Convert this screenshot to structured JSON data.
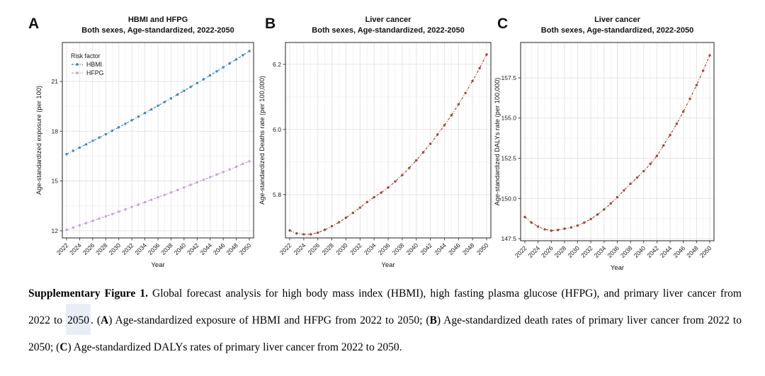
{
  "figure": {
    "panel_letters": [
      "A",
      "B",
      "C"
    ]
  },
  "colors": {
    "hbmi_blue": "#3d87be",
    "hfpg_purple": "#c2a5cf",
    "liver_red": "#a5443c",
    "caption_highlight": "#e9eef6",
    "grid_major": "#e2e2e2",
    "grid_minor": "#efefef",
    "panel_border": "#454545"
  },
  "chart_data": [
    {
      "type": "line",
      "panel": "A",
      "title": "HBMI and HFPG",
      "subtitle": "Both sexes, Age-standardized, 2022-2050",
      "xlabel": "Year",
      "ylabel": "Age-standardized exposure (per 100)",
      "x": [
        2022,
        2023,
        2024,
        2025,
        2026,
        2027,
        2028,
        2029,
        2030,
        2031,
        2032,
        2033,
        2034,
        2035,
        2036,
        2037,
        2038,
        2039,
        2040,
        2041,
        2042,
        2043,
        2044,
        2045,
        2046,
        2047,
        2048,
        2049,
        2050
      ],
      "xticks": [
        2022,
        2024,
        2026,
        2028,
        2030,
        2032,
        2034,
        2036,
        2038,
        2040,
        2042,
        2044,
        2046,
        2048,
        2050
      ],
      "yticks": [
        12,
        15,
        18,
        21
      ],
      "ylim": [
        11.57,
        23.35
      ],
      "grid": true,
      "legend": {
        "title": "Risk factor",
        "position": "top-left",
        "items": [
          {
            "label": "HBMI",
            "color": "#3d87be"
          },
          {
            "label": "HFPG",
            "color": "#c2a5cf"
          }
        ]
      },
      "series": [
        {
          "name": "HBMI",
          "color": "#3d87be",
          "values": [
            16.62,
            16.82,
            17.01,
            17.21,
            17.42,
            17.62,
            17.82,
            18.03,
            18.24,
            18.45,
            18.67,
            18.88,
            19.1,
            19.32,
            19.54,
            19.76,
            19.98,
            20.21,
            20.44,
            20.67,
            20.9,
            21.13,
            21.37,
            21.61,
            21.85,
            22.09,
            22.33,
            22.58,
            22.83
          ]
        },
        {
          "name": "HFPG",
          "color": "#c2a5cf",
          "values": [
            12.06,
            12.19,
            12.33,
            12.46,
            12.6,
            12.73,
            12.87,
            13.01,
            13.15,
            13.29,
            13.44,
            13.58,
            13.72,
            13.87,
            14.02,
            14.16,
            14.31,
            14.46,
            14.61,
            14.77,
            14.92,
            15.07,
            15.23,
            15.39,
            15.54,
            15.7,
            15.86,
            16.03,
            16.19
          ]
        }
      ]
    },
    {
      "type": "line",
      "panel": "B",
      "title": "Liver cancer",
      "subtitle": "Both sexes, Age-standardized, 2022-2050",
      "xlabel": "Year",
      "ylabel": "Age-standardized Deaths rate (per 100,000)",
      "x": [
        2022,
        2023,
        2024,
        2025,
        2026,
        2027,
        2028,
        2029,
        2030,
        2031,
        2032,
        2033,
        2034,
        2035,
        2036,
        2037,
        2038,
        2039,
        2040,
        2041,
        2042,
        2043,
        2044,
        2045,
        2046,
        2047,
        2048,
        2049,
        2050
      ],
      "xticks": [
        2022,
        2024,
        2026,
        2028,
        2030,
        2032,
        2034,
        2036,
        2038,
        2040,
        2042,
        2044,
        2046,
        2048,
        2050
      ],
      "yticks": [
        5.8,
        6.0,
        6.2
      ],
      "ytick_labels": [
        "5.8",
        "6.0",
        "6.2"
      ],
      "ylim": [
        5.667,
        6.267
      ],
      "grid": true,
      "series": [
        {
          "name": "Liver cancer deaths",
          "color": "#a5443c",
          "values": [
            5.69,
            5.681,
            5.678,
            5.678,
            5.683,
            5.692,
            5.703,
            5.715,
            5.729,
            5.744,
            5.76,
            5.777,
            5.792,
            5.806,
            5.822,
            5.84,
            5.86,
            5.882,
            5.905,
            5.93,
            5.956,
            5.984,
            6.013,
            6.044,
            6.077,
            6.112,
            6.149,
            6.188,
            6.23
          ]
        }
      ]
    },
    {
      "type": "line",
      "panel": "C",
      "title": "Liver cancer",
      "subtitle": "Both sexes, Age-standardized, 2022-2050",
      "xlabel": "Year",
      "ylabel": "Age-standardized DALYs rate (per 100,000)",
      "x": [
        2022,
        2023,
        2024,
        2025,
        2026,
        2027,
        2028,
        2029,
        2030,
        2031,
        2032,
        2033,
        2034,
        2035,
        2036,
        2037,
        2038,
        2039,
        2040,
        2041,
        2042,
        2043,
        2044,
        2045,
        2046,
        2047,
        2048,
        2049,
        2050
      ],
      "xticks": [
        2022,
        2024,
        2026,
        2028,
        2030,
        2032,
        2034,
        2036,
        2038,
        2040,
        2042,
        2044,
        2046,
        2048,
        2050
      ],
      "yticks": [
        147.5,
        150.0,
        152.5,
        155.0,
        157.5
      ],
      "ytick_labels": [
        "147.5",
        "150.0",
        "152.5",
        "155.0",
        "157.5"
      ],
      "ylim": [
        147.37,
        159.7
      ],
      "grid": true,
      "series": [
        {
          "name": "Liver cancer DALYs",
          "color": "#a5443c",
          "values": [
            148.85,
            148.5,
            148.25,
            148.08,
            148.0,
            148.04,
            148.12,
            148.2,
            148.32,
            148.5,
            148.72,
            149.0,
            149.32,
            149.68,
            150.08,
            150.5,
            150.92,
            151.3,
            151.7,
            152.15,
            152.65,
            153.3,
            153.95,
            154.65,
            155.4,
            156.2,
            157.05,
            157.95,
            158.9
          ]
        }
      ]
    }
  ],
  "caption": {
    "line1": {
      "bold": "Supplementary Figure 1.",
      "rest": " Global forecast analysis for high body mass index (HBMI), high fasting plasma glucose (HFPG), and primary liver cancer from"
    },
    "line2": {
      "pre": "2022 to ",
      "highlight": "2050",
      "seg1": ". (",
      "b1": "A",
      "seg2": ") Age-standardized exposure of HBMI and HFPG from 2022 to 2050; (",
      "b2": "B",
      "seg3": ") Age-standardized death rates of primary liver cancer from 2022 to"
    },
    "line3": {
      "seg1": "2050; (",
      "b1": "C",
      "seg2": ") Age-standardized DALYs rates of primary liver cancer from 2022 to 2050."
    }
  }
}
